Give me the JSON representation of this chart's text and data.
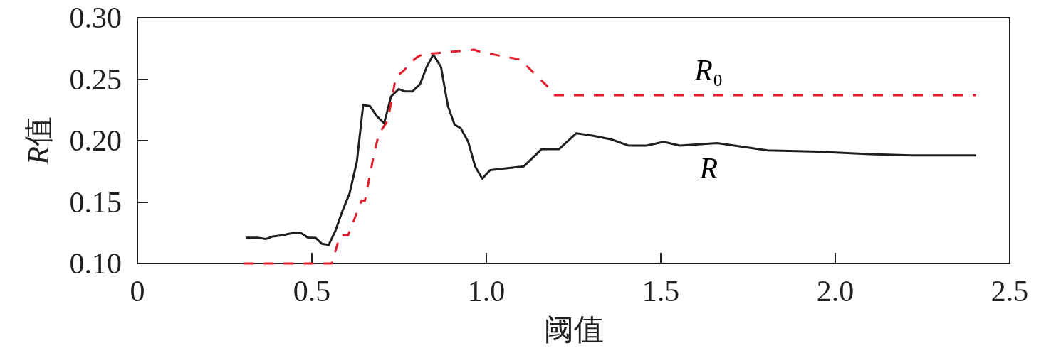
{
  "chart_data": {
    "type": "line",
    "xlabel": "阈值",
    "ylabel": "R值",
    "xlim": [
      0,
      2.5
    ],
    "xticks": [
      0,
      0.5,
      {
        "value": 1,
        "label": "1.0"
      },
      1.5,
      {
        "value": 2,
        "label": "2.0"
      },
      2.5
    ],
    "ylim": [
      0.1,
      0.3
    ],
    "yticks": [
      {
        "value": 0.1,
        "label": "0.10"
      },
      0.15,
      {
        "value": 0.2,
        "label": "0.20"
      },
      0.25,
      {
        "value": 0.3,
        "label": "0.30"
      }
    ],
    "grid": false,
    "legend": false,
    "marker": "none",
    "series": [
      {
        "name": "R",
        "color": "#231f20",
        "line_style": "solid",
        "x": [
          0.31,
          0.344,
          0.369,
          0.388,
          0.415,
          0.449,
          0.468,
          0.489,
          0.51,
          0.529,
          0.548,
          0.568,
          0.588,
          0.608,
          0.629,
          0.647,
          0.667,
          0.686,
          0.707,
          0.727,
          0.749,
          0.768,
          0.788,
          0.81,
          0.829,
          0.848,
          0.87,
          0.89,
          0.909,
          0.927,
          0.948,
          0.968,
          0.988,
          1.011,
          1.107,
          1.158,
          1.208,
          1.258,
          1.304,
          1.358,
          1.407,
          1.459,
          1.508,
          1.555,
          1.609,
          1.661,
          1.711,
          1.806,
          1.949,
          2.098,
          2.221,
          2.404
        ],
        "values": [
          0.121,
          0.121,
          0.12,
          0.122,
          0.123,
          0.125,
          0.125,
          0.121,
          0.121,
          0.116,
          0.115,
          0.127,
          0.143,
          0.157,
          0.183,
          0.229,
          0.228,
          0.22,
          0.214,
          0.236,
          0.242,
          0.24,
          0.24,
          0.246,
          0.26,
          0.27,
          0.26,
          0.228,
          0.213,
          0.21,
          0.199,
          0.179,
          0.169,
          0.176,
          0.179,
          0.193,
          0.193,
          0.206,
          0.204,
          0.201,
          0.196,
          0.196,
          0.199,
          0.196,
          0.197,
          0.198,
          0.196,
          0.192,
          0.191,
          0.189,
          0.188,
          0.188
        ]
      },
      {
        "name": "R₀",
        "color": "#e31e2d",
        "line_style": "dashed",
        "x": [
          0.305,
          0.557,
          0.581,
          0.604,
          0.642,
          0.652,
          0.68,
          0.693,
          0.717,
          0.73,
          0.741,
          0.764,
          0.781,
          0.802,
          0.822,
          0.849,
          0.965,
          0.985,
          1.097,
          1.179,
          1.196,
          2.404
        ],
        "values": [
          0.1,
          0.1,
          0.123,
          0.123,
          0.151,
          0.151,
          0.192,
          0.206,
          0.216,
          0.235,
          0.252,
          0.257,
          0.263,
          0.268,
          0.271,
          0.271,
          0.274,
          0.272,
          0.266,
          0.243,
          0.237,
          0.237
        ]
      }
    ]
  }
}
